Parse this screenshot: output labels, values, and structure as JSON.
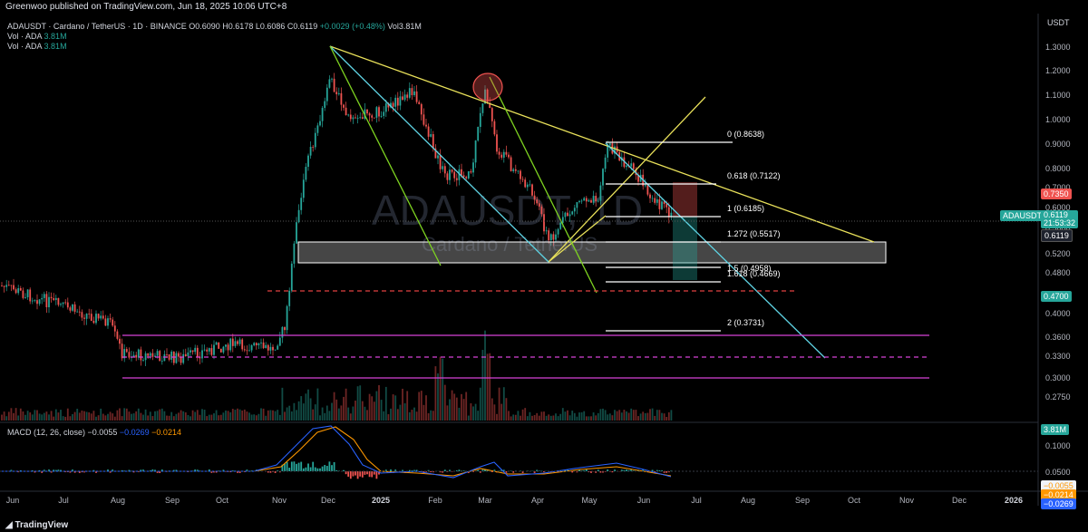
{
  "topbar": {
    "text": "Greenwoo published on TradingView.com, Jun 18, 2025 10:06 UTC+8"
  },
  "legend": {
    "symbol": "ADAUSDT · Cardano / TetherUS · 1D · BINANCE",
    "o": "O0.6090",
    "h": "H0.6178",
    "l": "L0.6086",
    "c": "C0.6119",
    "change": "+0.0029 (+0.48%)",
    "vol": "Vol3.81M",
    "vol1_label": "Vol · ADA",
    "vol1_value": "3.81M",
    "vol2_label": "Vol · ADA",
    "vol2_value": "3.81M"
  },
  "watermark": {
    "line1": "ADAUSDT, 1D",
    "line2": "Cardano / TetherUS"
  },
  "currency": "USDT",
  "price_axis": [
    "1.3000",
    "1.2000",
    "1.1000",
    "1.0000",
    "0.9000",
    "0.8000",
    "0.7000",
    "0.6000",
    "0.5800",
    "0.5200",
    "0.4800",
    "0.4000",
    "0.3600",
    "0.3300",
    "0.3000",
    "0.2750"
  ],
  "badges": {
    "symbol": "ADAUSDT",
    "price": "0.6119",
    "countdown": "21:53:32",
    "last": "0.6119",
    "red": "0.7350",
    "green": "0.4700",
    "vol": "3.81M",
    "macd1": "−0.0055",
    "macd2": "−0.0214",
    "macd3": "−0.0269"
  },
  "fib": [
    "0 (0.8638)",
    "0.618 (0.7122)",
    "1 (0.6185)",
    "1.272 (0.5517)",
    "1.5 (0.4958)",
    "1.618 (0.4669)",
    "2 (0.3731)"
  ],
  "macd": {
    "label": "MACD (12, 26, close)",
    "v1": "−0.0055",
    "v2": "−0.0269",
    "v3": "−0.0214",
    "axis": [
      "0.1000",
      "0.0500"
    ]
  },
  "time_axis": [
    "Jun",
    "Jul",
    "Aug",
    "Sep",
    "Oct",
    "Nov",
    "Dec",
    "2025",
    "Feb",
    "Mar",
    "Apr",
    "May",
    "Jun",
    "Jul",
    "Aug",
    "Sep",
    "Oct",
    "Nov",
    "Dec",
    "2026"
  ],
  "footer": {
    "brand": "TradingView"
  },
  "colors": {
    "up": "#26a69a",
    "down": "#ef5350",
    "trend": "#e9e15a",
    "channel": "#5fd3e3",
    "green_line": "#7ed321",
    "magenta": "#d642d6",
    "red_dash": "#e04040"
  }
}
